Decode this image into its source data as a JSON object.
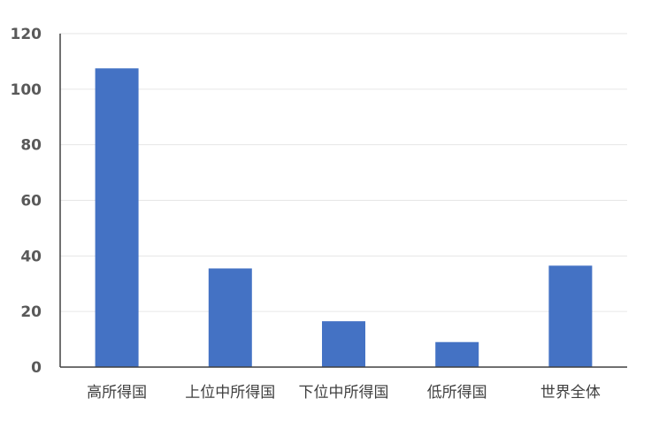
{
  "chart_data": {
    "type": "bar",
    "categories": [
      "高所得国",
      "上位中所得国",
      "下位中所得国",
      "低所得国",
      "世界全体"
    ],
    "values": [
      107.5,
      35.5,
      16.5,
      9,
      36.5
    ],
    "ylim": [
      0,
      120
    ],
    "yticks": [
      0,
      20,
      40,
      60,
      80,
      100,
      120
    ],
    "grid": true,
    "legend": "none",
    "colors": {
      "bar": "#4472c4",
      "grid": "#e6e6e6",
      "axis": "#404040"
    }
  }
}
